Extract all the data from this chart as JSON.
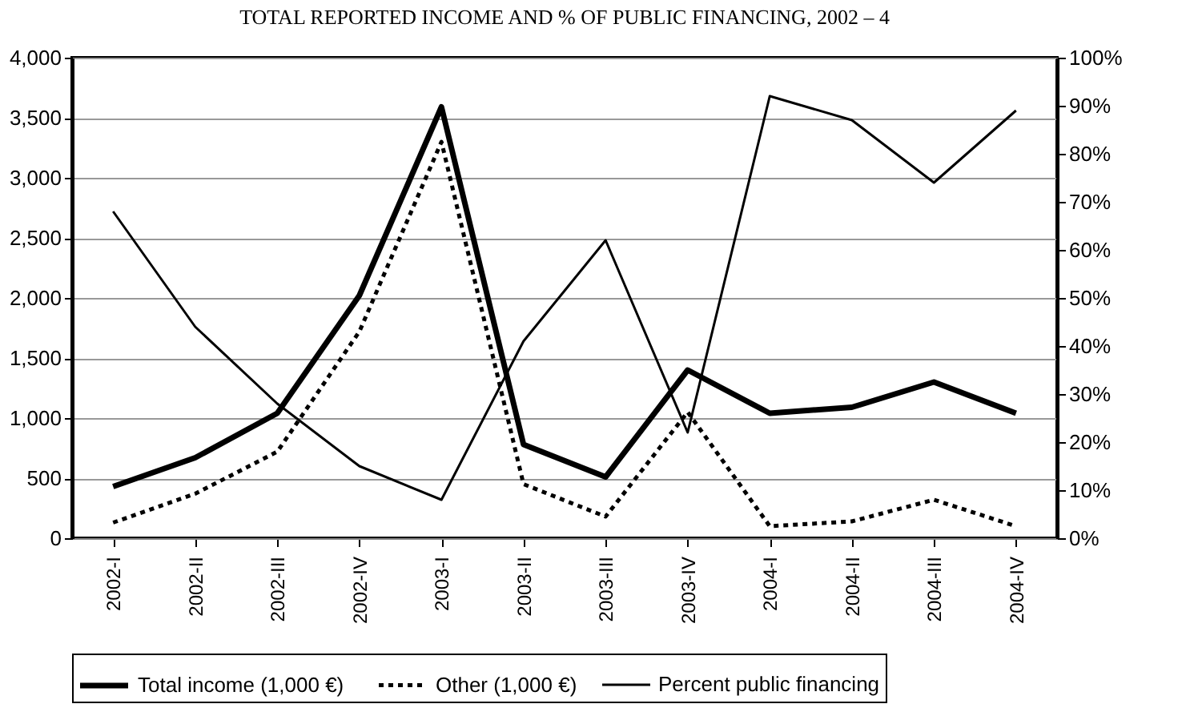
{
  "chart_data": {
    "type": "line",
    "title": "TOTAL REPORTED INCOME AND % OF PUBLIC FINANCING, 2002 – 4",
    "categories": [
      "2002-I",
      "2002-II",
      "2002-III",
      "2002-IV",
      "2003-I",
      "2003-II",
      "2003-III",
      "2003-IV",
      "2004-I",
      "2004-II",
      "2004-III",
      "2004-IV"
    ],
    "series": [
      {
        "name": "Total income  (1,000 €)",
        "color": "#000000",
        "line_style": "solid",
        "values": [
          430,
          670,
          1040,
          2020,
          3590,
          780,
          510,
          1400,
          1040,
          1090,
          1300,
          1040
        ]
      },
      {
        "name": "Other (1,000 €)",
        "color": "#000000",
        "line_style": "dotted",
        "values": [
          130,
          370,
          720,
          1720,
          3300,
          450,
          180,
          1050,
          100,
          140,
          320,
          100
        ]
      },
      {
        "name": "Percent public financing",
        "color": "#000000",
        "line_style": "solid",
        "axis": "y2",
        "values": [
          68,
          44,
          28,
          15,
          8,
          41,
          62,
          22,
          92,
          87,
          74,
          89
        ]
      }
    ],
    "ylim": [
      0,
      4000
    ],
    "yticks": [
      0,
      {
        "value": 500,
        "label": "500"
      },
      {
        "value": 1000,
        "label": "1,000"
      },
      {
        "value": 1500,
        "label": "1,500"
      },
      {
        "value": 2000,
        "label": "2,000"
      },
      {
        "value": 2500,
        "label": "2,500"
      },
      {
        "value": 3000,
        "label": "3,000"
      },
      {
        "value": 3500,
        "label": "3,500"
      },
      {
        "value": 4000,
        "label": "4,000"
      }
    ],
    "y2lim": [
      0,
      100
    ],
    "y2ticks": [
      {
        "value": 0,
        "label": "0%"
      },
      {
        "value": 10,
        "label": "10%"
      },
      {
        "value": 20,
        "label": "20%"
      },
      {
        "value": 30,
        "label": "30%"
      },
      {
        "value": 40,
        "label": "40%"
      },
      {
        "value": 50,
        "label": "50%"
      },
      {
        "value": 60,
        "label": "60%"
      },
      {
        "value": 70,
        "label": "70%"
      },
      {
        "value": 80,
        "label": "80%"
      },
      {
        "value": 90,
        "label": "90%"
      },
      {
        "value": 100,
        "label": "100%"
      }
    ],
    "grid": "y",
    "legend": "bottom",
    "marker": "none"
  }
}
